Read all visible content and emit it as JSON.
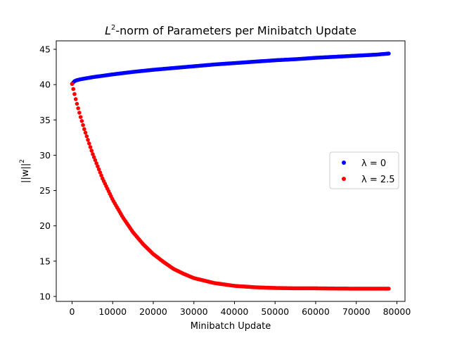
{
  "chart_data": {
    "type": "scatter",
    "title": {
      "base": "L",
      "sup": "2",
      "rest": "-norm of Parameters per Minibatch Update"
    },
    "xlabel": "Minibatch Update",
    "ylabel": {
      "base": "||w||",
      "sup": "2"
    },
    "xlim": [
      -3900,
      82000
    ],
    "ylim": [
      9.3,
      46.2
    ],
    "xticks": [
      0,
      10000,
      20000,
      30000,
      40000,
      50000,
      60000,
      70000,
      80000
    ],
    "yticks": [
      10,
      15,
      20,
      25,
      30,
      35,
      40,
      45
    ],
    "grid": false,
    "legend_position": "center-right",
    "series": [
      {
        "name": "λ = 0",
        "color": "#0000ff",
        "x": [
          0,
          500,
          1000,
          2000,
          3000,
          5000,
          7500,
          10000,
          15000,
          20000,
          25000,
          30000,
          35000,
          40000,
          45000,
          50000,
          55000,
          60000,
          65000,
          70000,
          75000,
          78000
        ],
        "y": [
          40.1,
          40.45,
          40.6,
          40.75,
          40.85,
          41.05,
          41.25,
          41.45,
          41.8,
          42.1,
          42.35,
          42.6,
          42.85,
          43.05,
          43.25,
          43.45,
          43.6,
          43.8,
          43.95,
          44.1,
          44.25,
          44.4
        ]
      },
      {
        "name": "λ = 2.5",
        "color": "#ff0000",
        "x": [
          0,
          500,
          1000,
          2000,
          3000,
          5000,
          7500,
          10000,
          12500,
          15000,
          17500,
          20000,
          22500,
          25000,
          27500,
          30000,
          35000,
          40000,
          45000,
          50000,
          55000,
          60000,
          65000,
          70000,
          75000,
          78000
        ],
        "y": [
          40.1,
          38.9,
          37.7,
          35.6,
          33.7,
          30.3,
          26.7,
          23.7,
          21.2,
          19.1,
          17.4,
          16.0,
          14.9,
          13.9,
          13.2,
          12.6,
          11.9,
          11.5,
          11.3,
          11.2,
          11.15,
          11.15,
          11.12,
          11.1,
          11.1,
          11.1
        ]
      }
    ]
  }
}
